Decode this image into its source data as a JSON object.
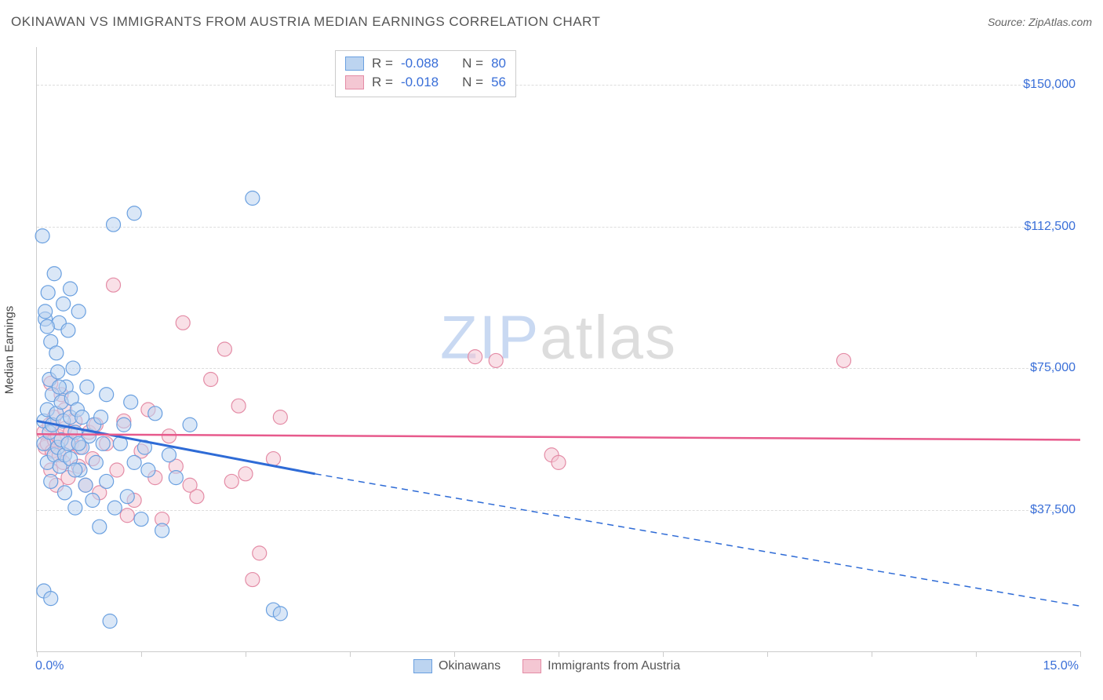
{
  "title": "OKINAWAN VS IMMIGRANTS FROM AUSTRIA MEDIAN EARNINGS CORRELATION CHART",
  "source_label": "Source: ZipAtlas.com",
  "y_axis_label": "Median Earnings",
  "watermark_zip": "ZIP",
  "watermark_atlas": "atlas",
  "colors": {
    "series_a_fill": "#bcd4f0",
    "series_a_stroke": "#6aa0e0",
    "series_b_fill": "#f4c7d3",
    "series_b_stroke": "#e48ca6",
    "line_a": "#2e6bd6",
    "line_b": "#e75a8c",
    "axis_text": "#3a6fd8",
    "grid": "#dddddd",
    "title_text": "#555555"
  },
  "chart": {
    "type": "scatter",
    "xlim": [
      0,
      15
    ],
    "ylim": [
      0,
      160000
    ],
    "xtick_positions": [
      0,
      1.5,
      3.0,
      4.5,
      6.0,
      7.5,
      9.0,
      10.5,
      12.0,
      13.5,
      15.0
    ],
    "xtick_labels": {
      "0": "0.0%",
      "15": "15.0%"
    },
    "ytick_positions": [
      37500,
      75000,
      112500,
      150000
    ],
    "ytick_labels": [
      "$37,500",
      "$75,000",
      "$112,500",
      "$150,000"
    ],
    "marker_radius": 9,
    "marker_opacity": 0.55,
    "background_color": "#ffffff"
  },
  "stats": {
    "a": {
      "R_label": "R =",
      "R": "-0.088",
      "N_label": "N =",
      "N": "80"
    },
    "b": {
      "R_label": "R =",
      "R": "-0.018",
      "N_label": "N =",
      "N": "56"
    }
  },
  "legend": {
    "a": "Okinawans",
    "b": "Immigrants from Austria"
  },
  "trend_lines": {
    "a": {
      "x1": 0,
      "y1": 61000,
      "x2": 4.0,
      "y2": 47000,
      "dash_x2": 15,
      "dash_y2": 12000
    },
    "b": {
      "x1": 0,
      "y1": 57500,
      "x2": 15,
      "y2": 56000
    }
  },
  "series_a_points": [
    [
      0.1,
      61000
    ],
    [
      0.1,
      55000
    ],
    [
      0.12,
      88000
    ],
    [
      0.12,
      90000
    ],
    [
      0.08,
      110000
    ],
    [
      0.15,
      64000
    ],
    [
      0.15,
      50000
    ],
    [
      0.16,
      95000
    ],
    [
      0.18,
      72000
    ],
    [
      0.18,
      58000
    ],
    [
      0.2,
      82000
    ],
    [
      0.2,
      45000
    ],
    [
      0.22,
      60000
    ],
    [
      0.22,
      68000
    ],
    [
      0.25,
      100000
    ],
    [
      0.25,
      52000
    ],
    [
      0.28,
      63000
    ],
    [
      0.3,
      54000
    ],
    [
      0.3,
      74000
    ],
    [
      0.32,
      87000
    ],
    [
      0.33,
      49000
    ],
    [
      0.35,
      56000
    ],
    [
      0.35,
      66000
    ],
    [
      0.38,
      92000
    ],
    [
      0.38,
      61000
    ],
    [
      0.4,
      42000
    ],
    [
      0.4,
      52000
    ],
    [
      0.42,
      70000
    ],
    [
      0.45,
      85000
    ],
    [
      0.45,
      55000
    ],
    [
      0.48,
      51000
    ],
    [
      0.48,
      62000
    ],
    [
      0.5,
      67000
    ],
    [
      0.52,
      75000
    ],
    [
      0.55,
      58000
    ],
    [
      0.55,
      38000
    ],
    [
      0.58,
      64000
    ],
    [
      0.6,
      90000
    ],
    [
      0.62,
      48000
    ],
    [
      0.65,
      54000
    ],
    [
      0.65,
      62000
    ],
    [
      0.7,
      44000
    ],
    [
      0.72,
      70000
    ],
    [
      0.75,
      57000
    ],
    [
      0.8,
      40000
    ],
    [
      0.82,
      60000
    ],
    [
      0.85,
      50000
    ],
    [
      0.9,
      33000
    ],
    [
      0.92,
      62000
    ],
    [
      0.1,
      16000
    ],
    [
      0.2,
      14000
    ],
    [
      0.95,
      55000
    ],
    [
      1.0,
      45000
    ],
    [
      1.0,
      68000
    ],
    [
      1.1,
      113000
    ],
    [
      1.12,
      38000
    ],
    [
      1.2,
      55000
    ],
    [
      1.25,
      60000
    ],
    [
      1.3,
      41000
    ],
    [
      1.35,
      66000
    ],
    [
      1.4,
      50000
    ],
    [
      1.4,
      116000
    ],
    [
      1.5,
      35000
    ],
    [
      1.55,
      54000
    ],
    [
      1.6,
      48000
    ],
    [
      1.7,
      63000
    ],
    [
      1.8,
      32000
    ],
    [
      1.9,
      52000
    ],
    [
      2.0,
      46000
    ],
    [
      1.05,
      8000
    ],
    [
      2.2,
      60000
    ],
    [
      3.1,
      120000
    ],
    [
      3.4,
      11000
    ],
    [
      3.5,
      10000
    ],
    [
      0.28,
      79000
    ],
    [
      0.32,
      70000
    ],
    [
      0.48,
      96000
    ],
    [
      0.15,
      86000
    ],
    [
      0.55,
      48000
    ],
    [
      0.6,
      55000
    ]
  ],
  "series_b_points": [
    [
      0.1,
      58000
    ],
    [
      0.12,
      54000
    ],
    [
      0.15,
      55000
    ],
    [
      0.18,
      60000
    ],
    [
      0.2,
      71000
    ],
    [
      0.2,
      48000
    ],
    [
      0.22,
      53000
    ],
    [
      0.25,
      56000
    ],
    [
      0.25,
      62000
    ],
    [
      0.28,
      44000
    ],
    [
      0.3,
      57000
    ],
    [
      0.32,
      52000
    ],
    [
      0.35,
      68000
    ],
    [
      0.38,
      50000
    ],
    [
      0.4,
      59000
    ],
    [
      0.4,
      64000
    ],
    [
      0.45,
      46000
    ],
    [
      0.48,
      58000
    ],
    [
      0.5,
      55000
    ],
    [
      0.55,
      61000
    ],
    [
      0.6,
      49000
    ],
    [
      0.62,
      54000
    ],
    [
      0.7,
      44000
    ],
    [
      0.75,
      58000
    ],
    [
      0.8,
      51000
    ],
    [
      0.85,
      60000
    ],
    [
      0.9,
      42000
    ],
    [
      1.0,
      55000
    ],
    [
      1.1,
      97000
    ],
    [
      1.15,
      48000
    ],
    [
      1.25,
      61000
    ],
    [
      1.4,
      40000
    ],
    [
      1.5,
      53000
    ],
    [
      1.6,
      64000
    ],
    [
      1.7,
      46000
    ],
    [
      1.8,
      35000
    ],
    [
      1.9,
      57000
    ],
    [
      2.0,
      49000
    ],
    [
      2.1,
      87000
    ],
    [
      2.2,
      44000
    ],
    [
      2.3,
      41000
    ],
    [
      2.5,
      72000
    ],
    [
      2.7,
      80000
    ],
    [
      2.8,
      45000
    ],
    [
      2.9,
      65000
    ],
    [
      3.0,
      47000
    ],
    [
      3.1,
      19000
    ],
    [
      3.2,
      26000
    ],
    [
      3.4,
      51000
    ],
    [
      3.5,
      62000
    ],
    [
      6.3,
      78000
    ],
    [
      6.6,
      77000
    ],
    [
      7.4,
      52000
    ],
    [
      7.5,
      50000
    ],
    [
      11.6,
      77000
    ],
    [
      1.3,
      36000
    ]
  ]
}
